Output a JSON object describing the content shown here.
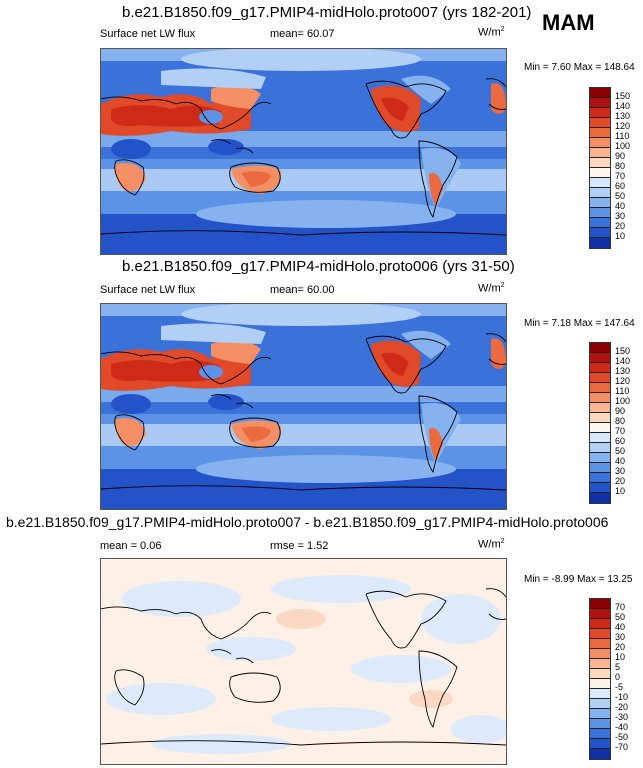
{
  "season": "MAM",
  "units_base": "W/m",
  "units_exp": "2",
  "panels": [
    {
      "title": "b.e21.B1850.f09_g17.PMIP4-midHolo.proto007 (yrs 182-201)",
      "variable": "Surface net LW flux",
      "mean": "mean=  60.07",
      "minmax": "Min =  7.60 Max = 148.64"
    },
    {
      "title": "b.e21.B1850.f09_g17.PMIP4-midHolo.proto006 (yrs 31-50)",
      "variable": "Surface net LW flux",
      "mean": "mean=  60.00",
      "minmax": "Min =  7.18 Max = 147.64"
    },
    {
      "title": "b.e21.B1850.f09_g17.PMIP4-midHolo.proto007 - b.e21.B1850.f09_g17.PMIP4-midHolo.proto006",
      "mean": "mean =   0.06",
      "rmse": "rmse =   1.52",
      "minmax": "Min = -8.99 Max = 13.25"
    }
  ],
  "chart_data": [
    {
      "type": "heatmap",
      "title": "b.e21.B1850.f09_g17.PMIP4-midHolo.proto007 (yrs 182-201)",
      "variable": "Surface net LW flux",
      "mean": 60.07,
      "min": 7.6,
      "max": 148.64,
      "colorbar_levels": [
        150,
        140,
        130,
        120,
        110,
        100,
        90,
        80,
        70,
        60,
        50,
        40,
        30,
        20,
        10
      ],
      "colorbar_colors": [
        "#8b0000",
        "#b01010",
        "#cf2a18",
        "#e04a28",
        "#ec6a40",
        "#f48e64",
        "#f9b494",
        "#fbd8c2",
        "#fdf6ee",
        "#d8e8fb",
        "#b2d0f6",
        "#86b3ef",
        "#5c93e6",
        "#3b72da",
        "#2452c8",
        "#0f2fa8"
      ]
    },
    {
      "type": "heatmap",
      "title": "b.e21.B1850.f09_g17.PMIP4-midHolo.proto006 (yrs 31-50)",
      "variable": "Surface net LW flux",
      "mean": 60.0,
      "min": 7.18,
      "max": 147.64,
      "colorbar_levels": [
        150,
        140,
        130,
        120,
        110,
        100,
        90,
        80,
        70,
        60,
        50,
        40,
        30,
        20,
        10
      ],
      "colorbar_colors": [
        "#8b0000",
        "#b01010",
        "#cf2a18",
        "#e04a28",
        "#ec6a40",
        "#f48e64",
        "#f9b494",
        "#fbd8c2",
        "#fdf6ee",
        "#d8e8fb",
        "#b2d0f6",
        "#86b3ef",
        "#5c93e6",
        "#3b72da",
        "#2452c8",
        "#0f2fa8"
      ]
    },
    {
      "type": "heatmap",
      "title": "b.e21.B1850.f09_g17.PMIP4-midHolo.proto007 - b.e21.B1850.f09_g17.PMIP4-midHolo.proto006",
      "mean": 0.06,
      "rmse": 1.52,
      "min": -8.99,
      "max": 13.25,
      "colorbar_levels": [
        70,
        50,
        40,
        30,
        20,
        10,
        5,
        0,
        -5,
        -10,
        -20,
        -30,
        -40,
        -50,
        -70
      ],
      "colorbar_colors": [
        "#8b0000",
        "#b01010",
        "#cf2a18",
        "#e04a28",
        "#ec6a40",
        "#f48e64",
        "#f9b494",
        "#fbd8c2",
        "#fdf0e6",
        "#dceafb",
        "#b2d0f6",
        "#86b3ef",
        "#5c93e6",
        "#3b72da",
        "#2452c8",
        "#0f2fa8"
      ]
    }
  ]
}
